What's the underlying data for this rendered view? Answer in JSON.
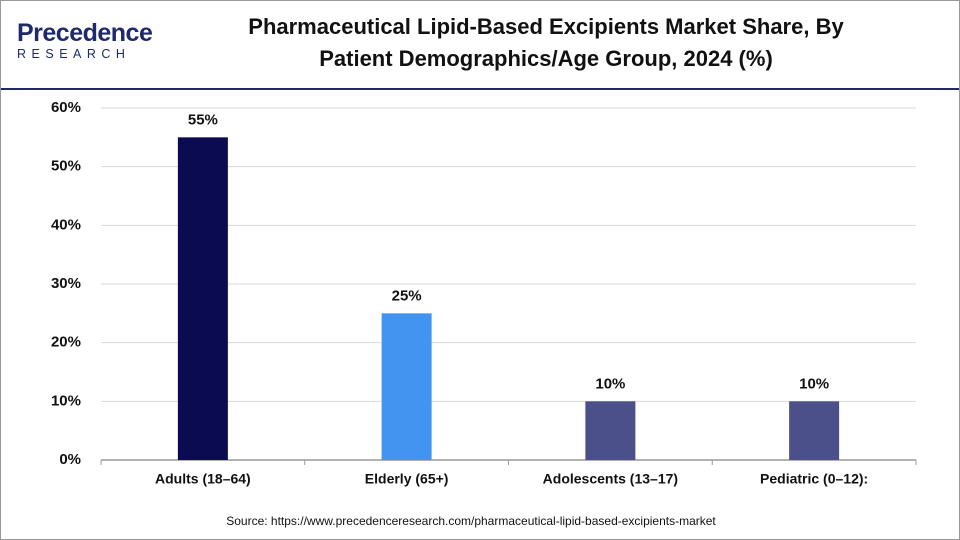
{
  "logo": {
    "name": "Precedence",
    "tagline": "RESEARCH"
  },
  "chart_data": {
    "type": "bar",
    "title": "Pharmaceutical Lipid-Based Excipients Market Share, By Patient Demographics/Age Group, 2024 (%)",
    "categories": [
      "Adults (18–64)",
      "Elderly (65+)",
      "Adolescents (13–17)",
      "Pediatric (0–12):"
    ],
    "values": [
      55,
      25,
      10,
      10
    ],
    "value_labels": [
      "55%",
      "25%",
      "10%",
      "10%"
    ],
    "colors": [
      "#0b0b52",
      "#4394f0",
      "#4b4f8a",
      "#4b4f8a"
    ],
    "ylim": [
      0,
      60
    ],
    "yticks": [
      {
        "value": 0,
        "label": "0%"
      },
      {
        "value": 10,
        "label": "10%"
      },
      {
        "value": 20,
        "label": "20%"
      },
      {
        "value": 30,
        "label": "30%"
      },
      {
        "value": 40,
        "label": "40%"
      },
      {
        "value": 50,
        "label": "50%"
      },
      {
        "value": 60,
        "label": "60%"
      }
    ],
    "grid": true,
    "source": "Source: https://www.precedenceresearch.com/pharmaceutical-lipid-based-excipients-market"
  }
}
